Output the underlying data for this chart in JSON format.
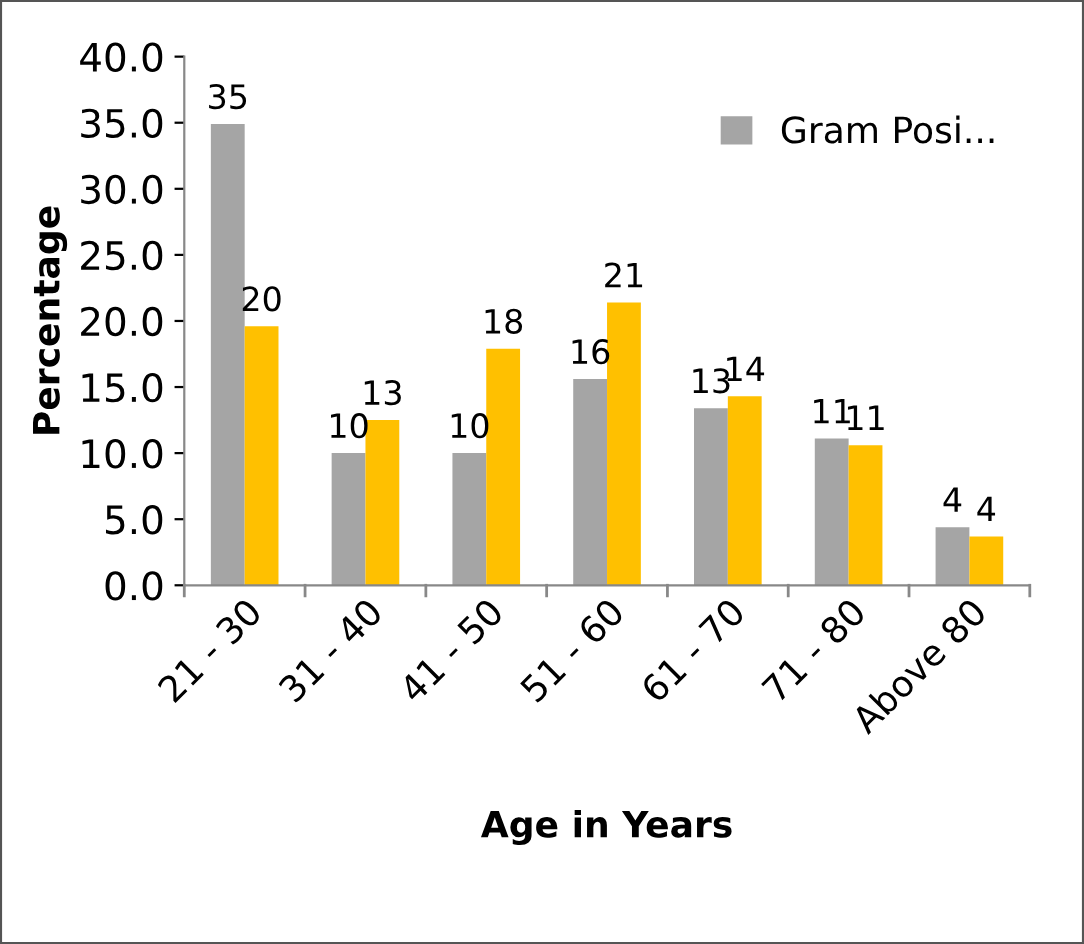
{
  "chart_data": {
    "type": "bar",
    "xlabel": "Age in Years",
    "ylabel": "Percentage",
    "categories": [
      "21 - 30",
      "31 - 40",
      "41 - 50",
      "51 - 60",
      "61 - 70",
      "71 - 80",
      "Above 80"
    ],
    "series": [
      {
        "name": "Gram Posi...",
        "color": "#a5a5a5",
        "values": [
          34.9,
          10.0,
          10.0,
          15.6,
          13.4,
          11.1,
          4.4
        ],
        "value_labels": [
          "35",
          "10",
          "10",
          "16",
          "13",
          "11",
          "4"
        ]
      },
      {
        "color": "#ffc000",
        "values": [
          19.6,
          12.5,
          17.9,
          21.4,
          14.3,
          10.6,
          3.7
        ],
        "value_labels": [
          "20",
          "13",
          "18",
          "21",
          "14",
          "11",
          "4"
        ]
      }
    ],
    "ylim": [
      0,
      40
    ],
    "yticks": [
      {
        "value": 0,
        "label": "0.0"
      },
      {
        "value": 5,
        "label": "5.0"
      },
      {
        "value": 10,
        "label": "10.0"
      },
      {
        "value": 15,
        "label": "15.0"
      },
      {
        "value": 20,
        "label": "20.0"
      },
      {
        "value": 25,
        "label": "25.0"
      },
      {
        "value": 30,
        "label": "30.0"
      },
      {
        "value": 35,
        "label": "35.0"
      },
      {
        "value": 40,
        "label": "40.0"
      }
    ],
    "grid": false,
    "legend": "top right"
  }
}
